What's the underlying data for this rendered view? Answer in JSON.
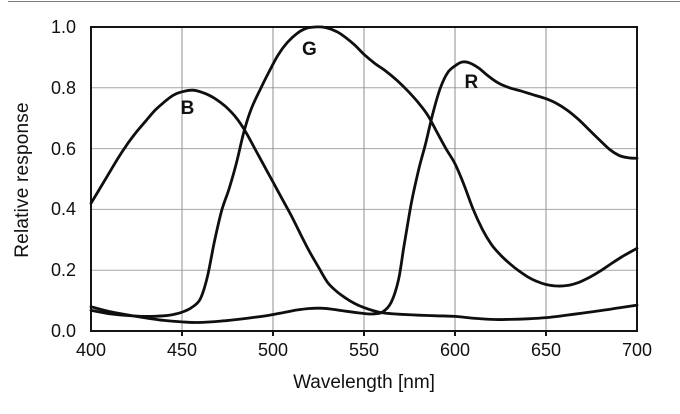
{
  "figure": {
    "background": "#ffffff",
    "frame_color": "#141414",
    "grid_color_horizontal": "#a6a6a6",
    "grid_color_vertical": "#8f8f8f",
    "curve_color": "#0f0f0f"
  },
  "chart_data": {
    "type": "line",
    "title": "",
    "xlabel": "Wavelength [nm]",
    "ylabel": "Relative response",
    "xlim": [
      400,
      700
    ],
    "ylim": [
      0,
      1
    ],
    "grid": true,
    "legend_position": "inline-curve-labels",
    "x_ticks": {
      "values": [
        400,
        450,
        500,
        550,
        600,
        650,
        700
      ],
      "labels": [
        "400",
        "450",
        "500",
        "550",
        "600",
        "650",
        "700"
      ]
    },
    "y_ticks": {
      "values": [
        0,
        0.2,
        0.4,
        0.6,
        0.8,
        1.0
      ],
      "labels": [
        "0.0",
        "0.2",
        "0.4",
        "0.6",
        "0.8",
        "1.0"
      ]
    },
    "series": [
      {
        "name": "B",
        "label": {
          "x": 453,
          "y": 0.73
        },
        "points": [
          [
            400,
            0.42
          ],
          [
            405,
            0.47
          ],
          [
            410,
            0.52
          ],
          [
            415,
            0.57
          ],
          [
            420,
            0.615
          ],
          [
            425,
            0.655
          ],
          [
            430,
            0.69
          ],
          [
            435,
            0.725
          ],
          [
            440,
            0.752
          ],
          [
            445,
            0.775
          ],
          [
            450,
            0.787
          ],
          [
            456,
            0.792
          ],
          [
            462,
            0.783
          ],
          [
            468,
            0.765
          ],
          [
            474,
            0.738
          ],
          [
            480,
            0.7
          ],
          [
            485,
            0.655
          ],
          [
            490,
            0.6
          ],
          [
            495,
            0.545
          ],
          [
            500,
            0.49
          ],
          [
            505,
            0.435
          ],
          [
            510,
            0.38
          ],
          [
            515,
            0.32
          ],
          [
            520,
            0.262
          ],
          [
            525,
            0.21
          ],
          [
            530,
            0.16
          ],
          [
            535,
            0.13
          ],
          [
            540,
            0.108
          ],
          [
            545,
            0.09
          ],
          [
            550,
            0.077
          ],
          [
            555,
            0.067
          ],
          [
            560,
            0.06
          ],
          [
            565,
            0.057
          ],
          [
            570,
            0.055
          ],
          [
            580,
            0.052
          ],
          [
            590,
            0.05
          ],
          [
            600,
            0.048
          ],
          [
            610,
            0.042
          ],
          [
            620,
            0.038
          ],
          [
            630,
            0.038
          ],
          [
            640,
            0.04
          ],
          [
            650,
            0.044
          ],
          [
            660,
            0.051
          ],
          [
            670,
            0.059
          ],
          [
            680,
            0.067
          ],
          [
            690,
            0.076
          ],
          [
            700,
            0.085
          ]
        ]
      },
      {
        "name": "G",
        "label": {
          "x": 520,
          "y": 0.925
        },
        "points": [
          [
            400,
            0.068
          ],
          [
            410,
            0.057
          ],
          [
            420,
            0.051
          ],
          [
            430,
            0.048
          ],
          [
            440,
            0.05
          ],
          [
            445,
            0.054
          ],
          [
            450,
            0.062
          ],
          [
            455,
            0.076
          ],
          [
            460,
            0.105
          ],
          [
            464,
            0.18
          ],
          [
            468,
            0.3
          ],
          [
            472,
            0.4
          ],
          [
            476,
            0.47
          ],
          [
            480,
            0.555
          ],
          [
            484,
            0.655
          ],
          [
            488,
            0.73
          ],
          [
            493,
            0.795
          ],
          [
            498,
            0.855
          ],
          [
            503,
            0.91
          ],
          [
            508,
            0.95
          ],
          [
            513,
            0.978
          ],
          [
            518,
            0.995
          ],
          [
            523,
            1.0
          ],
          [
            529,
            0.998
          ],
          [
            535,
            0.985
          ],
          [
            540,
            0.965
          ],
          [
            545,
            0.94
          ],
          [
            550,
            0.91
          ],
          [
            556,
            0.88
          ],
          [
            562,
            0.855
          ],
          [
            568,
            0.825
          ],
          [
            574,
            0.79
          ],
          [
            580,
            0.75
          ],
          [
            585,
            0.71
          ],
          [
            590,
            0.655
          ],
          [
            595,
            0.6
          ],
          [
            600,
            0.55
          ],
          [
            605,
            0.48
          ],
          [
            610,
            0.4
          ],
          [
            615,
            0.335
          ],
          [
            620,
            0.285
          ],
          [
            625,
            0.25
          ],
          [
            630,
            0.222
          ],
          [
            635,
            0.198
          ],
          [
            640,
            0.178
          ],
          [
            645,
            0.163
          ],
          [
            650,
            0.153
          ],
          [
            656,
            0.148
          ],
          [
            662,
            0.15
          ],
          [
            668,
            0.16
          ],
          [
            674,
            0.177
          ],
          [
            680,
            0.198
          ],
          [
            686,
            0.222
          ],
          [
            692,
            0.245
          ],
          [
            700,
            0.272
          ]
        ]
      },
      {
        "name": "R",
        "label": {
          "x": 609,
          "y": 0.815
        },
        "points": [
          [
            400,
            0.08
          ],
          [
            410,
            0.064
          ],
          [
            420,
            0.053
          ],
          [
            430,
            0.043
          ],
          [
            440,
            0.035
          ],
          [
            450,
            0.03
          ],
          [
            458,
            0.028
          ],
          [
            466,
            0.03
          ],
          [
            474,
            0.034
          ],
          [
            482,
            0.039
          ],
          [
            490,
            0.045
          ],
          [
            498,
            0.052
          ],
          [
            506,
            0.061
          ],
          [
            513,
            0.069
          ],
          [
            520,
            0.074
          ],
          [
            526,
            0.075
          ],
          [
            532,
            0.072
          ],
          [
            540,
            0.065
          ],
          [
            548,
            0.059
          ],
          [
            554,
            0.056
          ],
          [
            560,
            0.062
          ],
          [
            565,
            0.095
          ],
          [
            569,
            0.17
          ],
          [
            572,
            0.28
          ],
          [
            576,
            0.42
          ],
          [
            580,
            0.53
          ],
          [
            584,
            0.62
          ],
          [
            588,
            0.72
          ],
          [
            592,
            0.8
          ],
          [
            596,
            0.85
          ],
          [
            600,
            0.872
          ],
          [
            604,
            0.885
          ],
          [
            608,
            0.882
          ],
          [
            613,
            0.865
          ],
          [
            618,
            0.84
          ],
          [
            624,
            0.815
          ],
          [
            630,
            0.8
          ],
          [
            636,
            0.79
          ],
          [
            643,
            0.777
          ],
          [
            650,
            0.764
          ],
          [
            656,
            0.748
          ],
          [
            662,
            0.725
          ],
          [
            668,
            0.695
          ],
          [
            674,
            0.66
          ],
          [
            680,
            0.625
          ],
          [
            685,
            0.597
          ],
          [
            690,
            0.578
          ],
          [
            695,
            0.57
          ],
          [
            700,
            0.568
          ]
        ]
      }
    ]
  }
}
